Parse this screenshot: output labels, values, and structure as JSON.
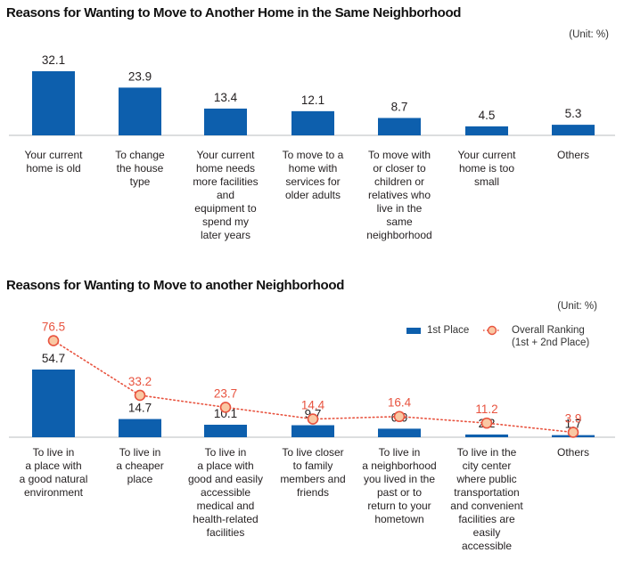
{
  "chart_data": [
    {
      "type": "bar",
      "title": "Reasons for Wanting to Move to Another Home in the Same Neighborhood",
      "unit": "(Unit: %)",
      "categories": [
        [
          "Your current",
          "home is old"
        ],
        [
          "To change",
          "the house",
          "type"
        ],
        [
          "Your current",
          "home needs",
          "more facilities",
          "and",
          "equipment to",
          "spend my",
          "later years"
        ],
        [
          "To move to a",
          "home with",
          "services for",
          "older adults"
        ],
        [
          "To move with",
          "or closer to",
          "children or",
          "relatives who",
          "live in the",
          "same",
          "neighborhood"
        ],
        [
          "Your current",
          "home is too",
          "small"
        ],
        [
          "Others"
        ]
      ],
      "values": [
        32.1,
        23.9,
        13.4,
        12.1,
        8.7,
        4.5,
        5.3
      ],
      "value_labels": [
        "32.1",
        "23.9",
        "13.4",
        "12.1",
        "8.7",
        "4.5",
        "5.3"
      ],
      "bar_color": "#0d5fad",
      "ylim": [
        0,
        40
      ],
      "grid": false
    },
    {
      "type": "bar",
      "title": "Reasons for Wanting to Move to another Neighborhood",
      "unit": "(Unit: %)",
      "categories": [
        [
          "To live in",
          "a place with",
          "a good natural",
          "environment"
        ],
        [
          "To live in",
          "a cheaper",
          "place"
        ],
        [
          "To live in",
          "a place with",
          "good and easily",
          "accessible",
          "medical and",
          "health-related",
          "facilities"
        ],
        [
          "To live closer",
          "to family",
          "members and",
          "friends"
        ],
        [
          "To live in",
          "a neighborhood",
          "you lived in the",
          "past or to",
          "return to your",
          "hometown"
        ],
        [
          "To live in the",
          "city center",
          "where public",
          "transportation",
          "and convenient",
          "facilities are",
          "easily",
          "accessible"
        ],
        [
          "Others"
        ]
      ],
      "series": [
        {
          "name": "1st Place",
          "type": "bar",
          "values": [
            54.7,
            14.7,
            10.1,
            9.7,
            6.9,
            2.2,
            1.7
          ],
          "labels": [
            "54.7",
            "14.7",
            "10.1",
            "9.7",
            "6.9",
            "2.2",
            "1.7"
          ],
          "color": "#0d5fad"
        },
        {
          "name": "Overall Ranking (1st + 2nd Place)",
          "legend_lines": [
            "Overall Ranking",
            "(1st + 2nd Place)"
          ],
          "type": "line",
          "values": [
            76.5,
            33.2,
            23.7,
            14.4,
            16.4,
            11.2,
            3.9
          ],
          "labels": [
            "76.5",
            "33.2",
            "23.7",
            "14.4",
            "16.4",
            "11.2",
            "3.9"
          ],
          "color": "#e8533f"
        }
      ],
      "ylim": [
        0,
        90
      ],
      "legend_position": "top-right",
      "grid": false
    }
  ]
}
